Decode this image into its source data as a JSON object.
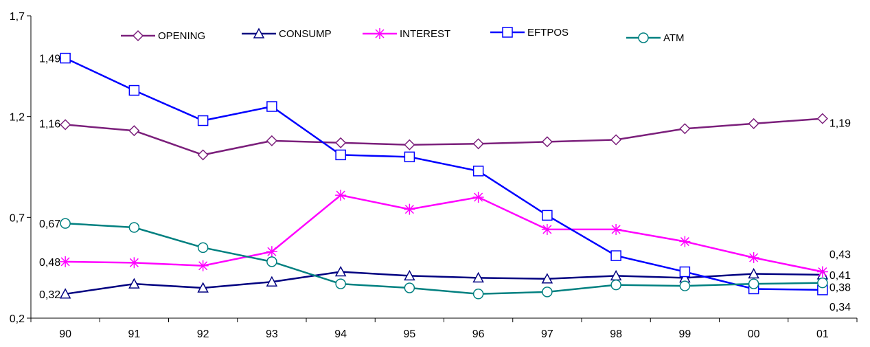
{
  "chart_data": {
    "type": "line",
    "categories": [
      "90",
      "91",
      "92",
      "93",
      "94",
      "95",
      "96",
      "97",
      "98",
      "99",
      "00",
      "01"
    ],
    "ylim": [
      0.2,
      1.7
    ],
    "yticks": [
      "0,2",
      "0,7",
      "1,2",
      "1,7"
    ],
    "ytick_values": [
      0.2,
      0.7,
      1.2,
      1.7
    ],
    "grid": false,
    "legend_position": "top",
    "series": [
      {
        "name": "OPENING",
        "color": "#7b1f7b",
        "marker": "diamond",
        "values": [
          1.16,
          1.13,
          1.01,
          1.08,
          1.07,
          1.06,
          1.065,
          1.075,
          1.085,
          1.14,
          1.165,
          1.19
        ],
        "labels": {
          "0": "1,16",
          "11": "1,19"
        }
      },
      {
        "name": "CONSUMP",
        "color": "#000080",
        "marker": "triangle",
        "values": [
          0.32,
          0.37,
          0.35,
          0.38,
          0.43,
          0.41,
          0.4,
          0.395,
          0.41,
          0.4,
          0.42,
          0.415
        ],
        "labels": {
          "0": "0,32",
          "11": "0,41"
        }
      },
      {
        "name": "INTEREST",
        "color": "#ff00ff",
        "marker": "star",
        "values": [
          0.48,
          0.475,
          0.46,
          0.53,
          0.81,
          0.74,
          0.8,
          0.64,
          0.64,
          0.58,
          0.5,
          0.43
        ],
        "labels": {
          "0": "0,48",
          "11": "0,43"
        }
      },
      {
        "name": "EFTPOS",
        "color": "#0000ff",
        "marker": "square",
        "values": [
          1.49,
          1.33,
          1.18,
          1.25,
          1.01,
          1.0,
          0.93,
          0.71,
          0.51,
          0.43,
          0.345,
          0.34
        ],
        "labels": {
          "0": "1,49",
          "11": "0,34"
        }
      },
      {
        "name": "ATM",
        "color": "#008080",
        "marker": "circle",
        "values": [
          0.67,
          0.65,
          0.55,
          0.48,
          0.37,
          0.35,
          0.32,
          0.33,
          0.365,
          0.36,
          0.37,
          0.375
        ],
        "labels": {
          "0": "0,67",
          "11": "0,38"
        }
      }
    ]
  }
}
